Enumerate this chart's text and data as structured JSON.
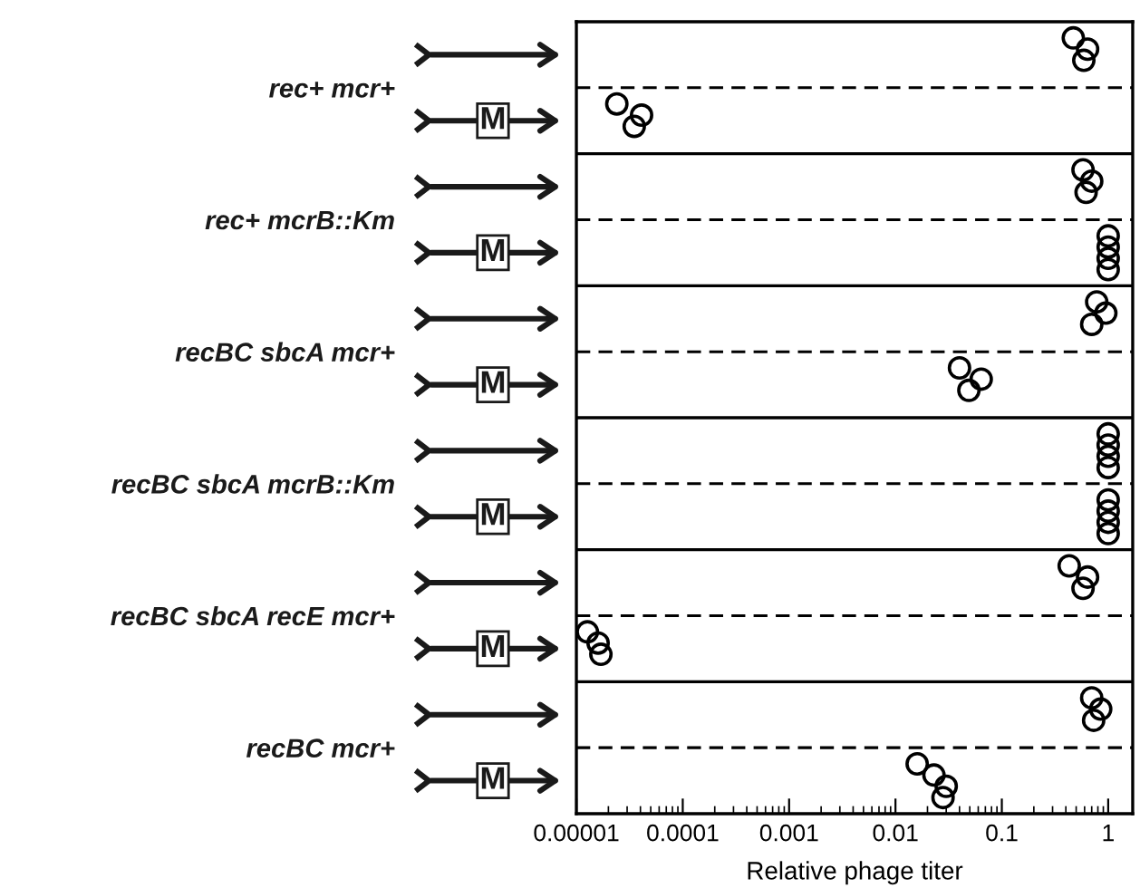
{
  "chart_data": {
    "type": "scatter",
    "orientation": "horizontal",
    "log": "x",
    "marker": "circle",
    "grid": "y",
    "xlabel": "Relative phage titer",
    "categories": [
      "rec+ mcr+",
      "rec+ mcrB::Km",
      "recBC sbcA mcr+",
      "recBC sbcA mcrB::Km",
      "recBC sbcA recE mcr+",
      "recBC mcr+"
    ],
    "xlim": [
      1e-05,
      1.7
    ],
    "xticks": [
      {
        "value": 1e-05,
        "label": "0.00001"
      },
      0.0001,
      0.001,
      0.01,
      0.1,
      1
    ],
    "series": [
      {
        "color": "#000000",
        "values": [
          0.47,
          0.58,
          0.78,
          1,
          0.43,
          0.7
        ]
      },
      {
        "color": "#000000",
        "values": [
          0.64,
          0.7,
          0.95,
          1,
          0.64,
          0.85
        ]
      },
      {
        "color": "#000000",
        "values": [
          0.59,
          0.62,
          0.7,
          1,
          0.58,
          0.73
        ]
      },
      {
        "color": "#000000",
        "values": [
          null,
          null,
          null,
          1,
          null,
          null
        ]
      },
      {
        "name": "M",
        "color": "#000000",
        "values": [
          2.4e-05,
          1,
          0.04,
          1,
          1.27e-05,
          0.016
        ]
      },
      {
        "color": "#000000",
        "values": [
          4.1e-05,
          1,
          0.064,
          1,
          1.6e-05,
          0.023
        ]
      },
      {
        "color": "#000000",
        "values": [
          3.5e-05,
          1,
          0.049,
          1,
          1.7e-05,
          0.03
        ]
      },
      {
        "color": "#000000",
        "values": [
          null,
          1,
          null,
          1,
          null,
          0.028
        ]
      }
    ]
  }
}
